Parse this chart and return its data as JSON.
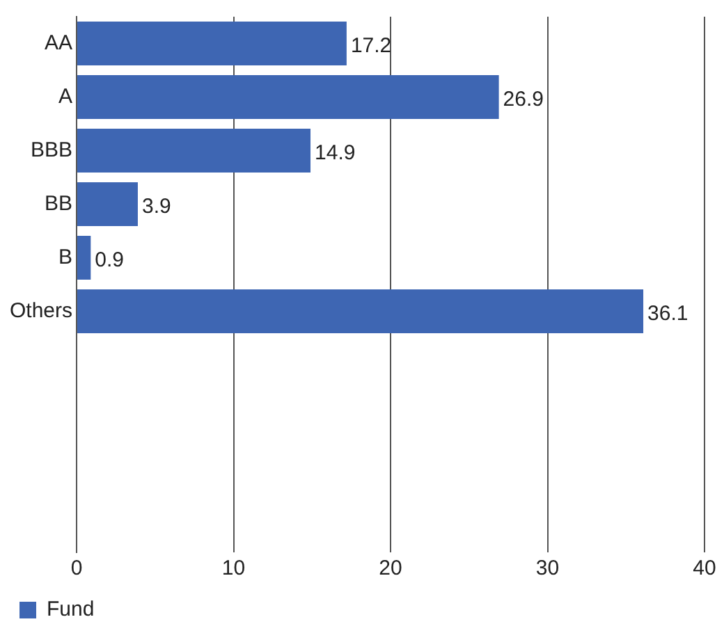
{
  "chart_data": {
    "type": "bar",
    "orientation": "horizontal",
    "categories": [
      "AA",
      "A",
      "BBB",
      "BB",
      "B",
      "Others",
      null,
      null,
      null,
      null
    ],
    "series": [
      {
        "name": "Fund",
        "color": "#3e66b3",
        "values": [
          17.2,
          26.9,
          14.9,
          3.9,
          0.9,
          36.1,
          null,
          null,
          null,
          null
        ]
      }
    ],
    "xlim": [
      0,
      40
    ],
    "xticks": [
      0,
      10,
      20,
      30,
      40
    ],
    "grid": "x",
    "legend": "bottom left",
    "data_labels": true
  }
}
